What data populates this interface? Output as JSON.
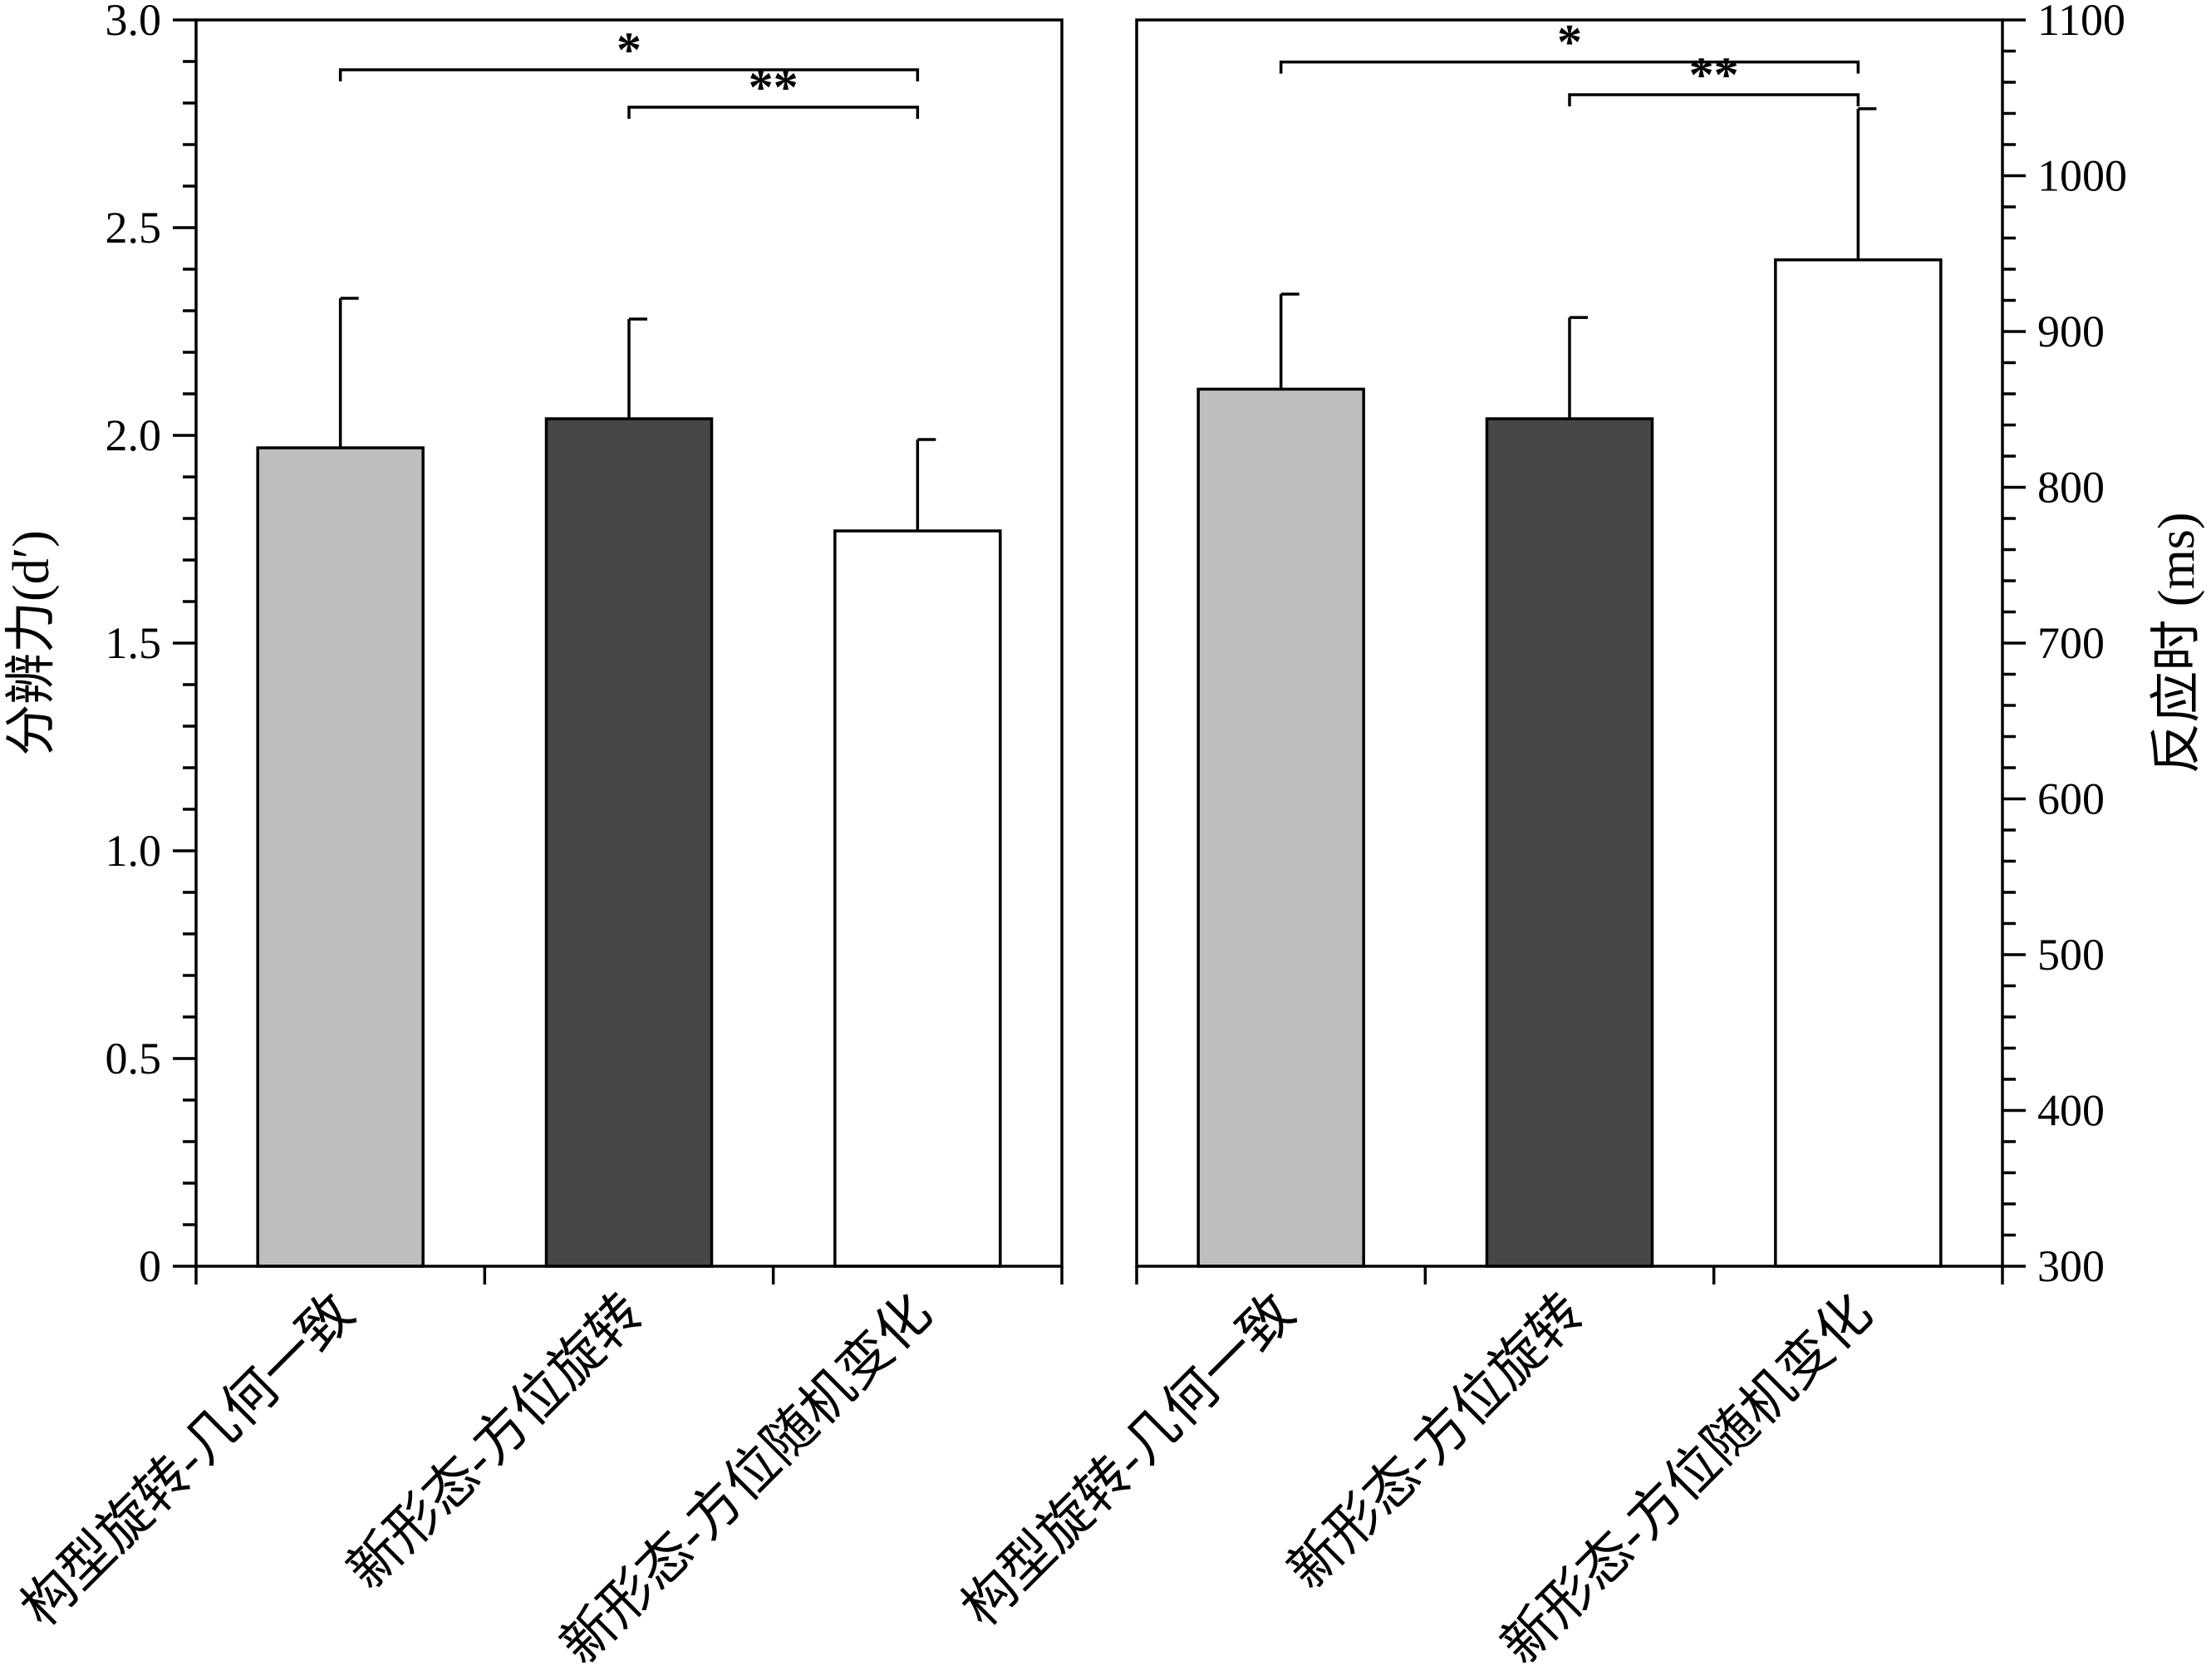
{
  "chart_data": [
    {
      "type": "bar",
      "categories": [
        "构型旋转-几何一致",
        "新形态-方位旋转",
        "新形态-方位随机变化"
      ],
      "values": [
        1.97,
        2.04,
        1.77
      ],
      "error_upper": [
        2.33,
        2.28,
        1.99
      ],
      "colors": [
        "#bfbdc0",
        "#474747",
        "#ffffff"
      ],
      "ylabel": "分辨力(d′)",
      "ylim": [
        0,
        3.0
      ],
      "yticks": [
        "0",
        "0.5",
        "1.0",
        "1.5",
        "2.0",
        "2.5",
        "3.0"
      ],
      "ytick_values": [
        0,
        0.5,
        1.0,
        1.5,
        2.0,
        2.5,
        3.0
      ],
      "minor_step": 0.1,
      "axis_side": "left",
      "significance": [
        {
          "from": 0,
          "to": 2,
          "label": "*",
          "y": 2.88
        },
        {
          "from": 1,
          "to": 2,
          "label": "**",
          "y": 2.79
        }
      ]
    },
    {
      "type": "bar",
      "categories": [
        "构型旋转-几何一致",
        "新形态-方位旋转",
        "新形态-方位随机变化"
      ],
      "values": [
        863,
        844,
        946
      ],
      "error_upper": [
        924,
        909,
        1043
      ],
      "colors": [
        "#bfbdc0",
        "#474747",
        "#ffffff"
      ],
      "ylabel": "反应时 (ms)",
      "ylim": [
        300,
        1100
      ],
      "yticks": [
        "300",
        "400",
        "500",
        "600",
        "700",
        "800",
        "900",
        "1000",
        "1100"
      ],
      "ytick_values": [
        300,
        400,
        500,
        600,
        700,
        800,
        900,
        1000,
        1100
      ],
      "minor_step": 20,
      "axis_side": "right",
      "significance": [
        {
          "from": 0,
          "to": 2,
          "label": "*",
          "y": 1073
        },
        {
          "from": 1,
          "to": 2,
          "label": "**",
          "y": 1052
        }
      ]
    }
  ]
}
